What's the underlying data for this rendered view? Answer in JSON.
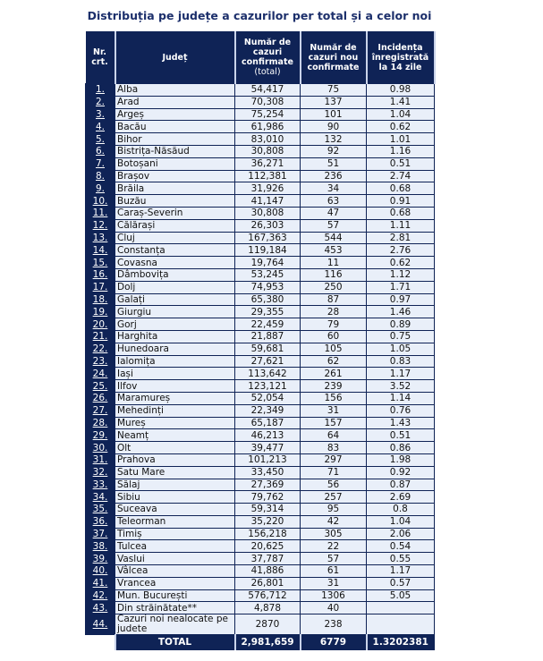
{
  "title": "Distribuția pe județe a cazurilor per total și a celor noi",
  "headers": {
    "nr": "Nr. crt.",
    "judet": "Județ",
    "total": "Număr de cazuri confirmate",
    "total_sub": "(total)",
    "new": "Număr de cazuri nou confirmate",
    "incidence": "Incidența înregistrată la 14 zile"
  },
  "rows": [
    [
      "1.",
      "Alba",
      "54,417",
      "75",
      "0.98"
    ],
    [
      "2.",
      "Arad",
      "70,308",
      "137",
      "1.41"
    ],
    [
      "3.",
      "Argeș",
      "75,254",
      "101",
      "1.04"
    ],
    [
      "4.",
      "Bacău",
      "61,986",
      "90",
      "0.62"
    ],
    [
      "5.",
      "Bihor",
      "83,010",
      "132",
      "1.01"
    ],
    [
      "6.",
      "Bistrița-Năsăud",
      "30,808",
      "92",
      "1.16"
    ],
    [
      "7.",
      "Botoșani",
      "36,271",
      "51",
      "0.51"
    ],
    [
      "8.",
      "Brașov",
      "112,381",
      "236",
      "2.74"
    ],
    [
      "9.",
      "Brăila",
      "31,926",
      "34",
      "0.68"
    ],
    [
      "10.",
      "Buzău",
      "41,147",
      "63",
      "0.91"
    ],
    [
      "11.",
      "Caraș-Severin",
      "30,808",
      "47",
      "0.68"
    ],
    [
      "12.",
      "Călărași",
      "26,303",
      "57",
      "1.11"
    ],
    [
      "13.",
      "Cluj",
      "167,363",
      "544",
      "2.81"
    ],
    [
      "14.",
      "Constanța",
      "119,184",
      "453",
      "2.76"
    ],
    [
      "15.",
      "Covasna",
      "19,764",
      "11",
      "0.62"
    ],
    [
      "16.",
      "Dâmbovița",
      "53,245",
      "116",
      "1.12"
    ],
    [
      "17.",
      "Dolj",
      "74,953",
      "250",
      "1.71"
    ],
    [
      "18.",
      "Galați",
      "65,380",
      "87",
      "0.97"
    ],
    [
      "19.",
      "Giurgiu",
      "29,355",
      "28",
      "1.46"
    ],
    [
      "20.",
      "Gorj",
      "22,459",
      "79",
      "0.89"
    ],
    [
      "21.",
      "Harghita",
      "21,887",
      "60",
      "0.75"
    ],
    [
      "22.",
      "Hunedoara",
      "59,681",
      "105",
      "1.05"
    ],
    [
      "23.",
      "Ialomița",
      "27,621",
      "62",
      "0.83"
    ],
    [
      "24.",
      "Iași",
      "113,642",
      "261",
      "1.17"
    ],
    [
      "25.",
      "Ilfov",
      "123,121",
      "239",
      "3.52"
    ],
    [
      "26.",
      "Maramureș",
      "52,054",
      "156",
      "1.14"
    ],
    [
      "27.",
      "Mehedinți",
      "22,349",
      "31",
      "0.76"
    ],
    [
      "28.",
      "Mureș",
      "65,187",
      "157",
      "1.43"
    ],
    [
      "29.",
      "Neamț",
      "46,213",
      "64",
      "0.51"
    ],
    [
      "30.",
      "Olt",
      "39,477",
      "83",
      "0.86"
    ],
    [
      "31.",
      "Prahova",
      "101,213",
      "297",
      "1.98"
    ],
    [
      "32.",
      "Satu Mare",
      "33,450",
      "71",
      "0.92"
    ],
    [
      "33.",
      "Sălaj",
      "27,369",
      "56",
      "0.87"
    ],
    [
      "34.",
      "Sibiu",
      "79,762",
      "257",
      "2.69"
    ],
    [
      "35.",
      "Suceava",
      "59,314",
      "95",
      "0.8"
    ],
    [
      "36.",
      "Teleorman",
      "35,220",
      "42",
      "1.04"
    ],
    [
      "37.",
      "Timiș",
      "156,218",
      "305",
      "2.06"
    ],
    [
      "38.",
      "Tulcea",
      "20,625",
      "22",
      "0.54"
    ],
    [
      "39.",
      "Vaslui",
      "37,787",
      "57",
      "0.55"
    ],
    [
      "40.",
      "Vâlcea",
      "41,886",
      "61",
      "1.17"
    ],
    [
      "41.",
      "Vrancea",
      "26,801",
      "31",
      "0.57"
    ],
    [
      "42.",
      "Mun. București",
      "576,712",
      "1306",
      "5.05"
    ],
    [
      "43.",
      "Din străinătate**",
      "4,878",
      "40",
      ""
    ],
    [
      "44.",
      "Cazuri noi nealocate pe judete",
      "2870",
      "238",
      ""
    ]
  ],
  "total": {
    "label": "TOTAL",
    "total": "2,981,659",
    "new": "6779",
    "incidence": "1.3202381"
  }
}
